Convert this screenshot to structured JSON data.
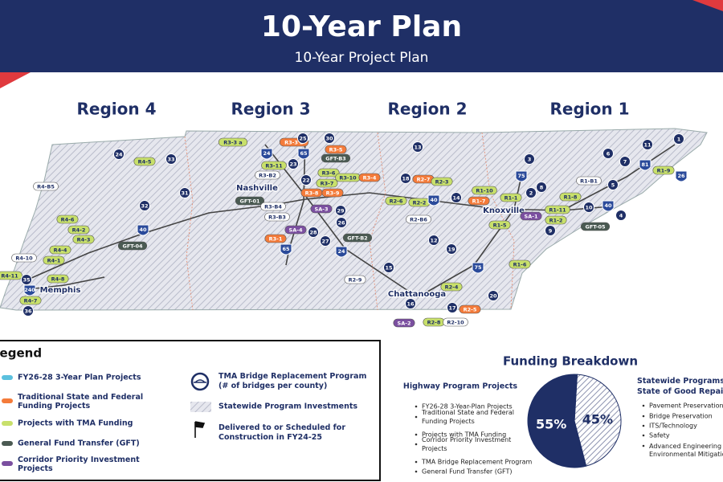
{
  "header": {
    "title": "10-Year Plan",
    "subtitle": "10-Year Project Plan"
  },
  "regions": [
    "Region 4",
    "Region 3",
    "Region 2",
    "Region 1"
  ],
  "cities": [
    "Nashville",
    "Memphis",
    "Knoxville",
    "Chattanooga"
  ],
  "badges": [
    {
      "label": "R4-B5",
      "color": "#ffffff"
    },
    {
      "label": "R4-5",
      "color": "#c8e06b"
    },
    {
      "label": "R4-6",
      "color": "#c8e06b"
    },
    {
      "label": "R4-2",
      "color": "#c8e06b"
    },
    {
      "label": "R4-3",
      "color": "#c8e06b"
    },
    {
      "label": "R4-4",
      "color": "#c8e06b"
    },
    {
      "label": "R4-1",
      "color": "#c8e06b"
    },
    {
      "label": "R4-10",
      "color": "#ffffff"
    },
    {
      "label": "R4-11",
      "color": "#c8e06b"
    },
    {
      "label": "R4-8",
      "color": "#c8e06b"
    },
    {
      "label": "R4-7",
      "color": "#c8e06b"
    },
    {
      "label": "GFT-04",
      "color": "#4a5a52"
    },
    {
      "label": "R3-3 a",
      "color": "#c8e06b"
    },
    {
      "label": "R3-3 b",
      "color": "#f47b3a"
    },
    {
      "label": "R3-5",
      "color": "#f47b3a"
    },
    {
      "label": "GFT-B3",
      "color": "#4a5a52"
    },
    {
      "label": "R3-B2",
      "color": "#ffffff"
    },
    {
      "label": "R3-11",
      "color": "#c8e06b"
    },
    {
      "label": "R3-6",
      "color": "#c8e06b"
    },
    {
      "label": "R3-7",
      "color": "#c8e06b"
    },
    {
      "label": "R3-10",
      "color": "#c8e06b"
    },
    {
      "label": "R3-4",
      "color": "#f47b3a"
    },
    {
      "label": "R3-8",
      "color": "#f47b3a"
    },
    {
      "label": "R3-9",
      "color": "#f47b3a"
    },
    {
      "label": "GFT-01",
      "color": "#4a5a52"
    },
    {
      "label": "R3-B4",
      "color": "#ffffff"
    },
    {
      "label": "R3-B3",
      "color": "#ffffff"
    },
    {
      "label": "SA-3",
      "color": "#7b4fa0"
    },
    {
      "label": "SA-4",
      "color": "#7b4fa0"
    },
    {
      "label": "R3-1",
      "color": "#f47b3a"
    },
    {
      "label": "GFT-B2",
      "color": "#4a5a52"
    },
    {
      "label": "R2-7",
      "color": "#f47b3a"
    },
    {
      "label": "R2-3",
      "color": "#c8e06b"
    },
    {
      "label": "R2-2",
      "color": "#c8e06b"
    },
    {
      "label": "R2-6",
      "color": "#c8e06b"
    },
    {
      "label": "R2-B6",
      "color": "#ffffff"
    },
    {
      "label": "R2-9",
      "color": "#ffffff"
    },
    {
      "label": "R2-4",
      "color": "#c8e06b"
    },
    {
      "label": "R2-5",
      "color": "#f47b3a"
    },
    {
      "label": "R2-8",
      "color": "#c8e06b"
    },
    {
      "label": "R2-10",
      "color": "#ffffff"
    },
    {
      "label": "SA-2",
      "color": "#7b4fa0"
    },
    {
      "label": "R1-10",
      "color": "#c8e06b"
    },
    {
      "label": "R1-7",
      "color": "#f47b3a"
    },
    {
      "label": "R1-1",
      "color": "#c8e06b"
    },
    {
      "label": "R1-B1",
      "color": "#ffffff"
    },
    {
      "label": "R1-8",
      "color": "#c8e06b"
    },
    {
      "label": "R1-11",
      "color": "#c8e06b"
    },
    {
      "label": "R1-2",
      "color": "#c8e06b"
    },
    {
      "label": "R1-5",
      "color": "#c8e06b"
    },
    {
      "label": "SA-1",
      "color": "#7b4fa0"
    },
    {
      "label": "GFT-05",
      "color": "#4a5a52"
    },
    {
      "label": "R1-6",
      "color": "#c8e06b"
    },
    {
      "label": "R1-9",
      "color": "#c8e06b"
    }
  ],
  "bridges": [
    "24",
    "33",
    "31",
    "32",
    "35",
    "36",
    "25",
    "30",
    "22",
    "23",
    "29",
    "26",
    "28",
    "27",
    "13",
    "18",
    "14",
    "12",
    "19",
    "15",
    "16",
    "17",
    "20",
    "3",
    "8",
    "2",
    "6",
    "7",
    "5",
    "4",
    "10",
    "9",
    "1",
    "11"
  ],
  "shields": [
    "240",
    "40",
    "24",
    "65",
    "65",
    "24",
    "40",
    "75",
    "75",
    "40",
    "81",
    "26"
  ],
  "legend": {
    "title": "Legend",
    "items": [
      {
        "label": "FY26-28 3-Year Plan Projects",
        "color": "#5bc0de"
      },
      {
        "label": "Traditional State and Federal Funding Projects",
        "color": "#f47b3a"
      },
      {
        "label": "Projects with TMA Funding",
        "color": "#c8e06b"
      },
      {
        "label": "General Fund Transfer (GFT)",
        "color": "#4a5a52"
      },
      {
        "label": "Corridor Priority Investment Projects",
        "color": "#7b4fa0"
      }
    ],
    "symbols": [
      "TMA Bridge Replacement Program (# of bridges per county)",
      "Statewide Program Investments",
      "Delivered to or Scheduled for Construction in FY24-25"
    ]
  },
  "funding": {
    "title": "Funding Breakdown",
    "highway": {
      "heading": "Highway Program Projects",
      "items": [
        "FY26-28 3-Year-Plan Projects",
        "Traditional State and Federal Funding Projects",
        "Projects with TMA Funding",
        "Corridor Priority Investment Projects",
        "TMA Bridge Replacement Program",
        "General Fund Transfer (GFT)"
      ]
    },
    "statewide": {
      "heading": "Statewide Programs and State of Good Repair",
      "items": [
        "Pavement Preservation",
        "Bridge Preservation",
        "ITS/Technology",
        "Safety",
        "Advanced Engineering and Environmental Mitigation"
      ]
    }
  },
  "chart_data": {
    "type": "pie",
    "categories": [
      "Highway Program Projects",
      "Statewide Programs and State of Good Repair"
    ],
    "values": [
      55,
      45
    ],
    "value_labels": [
      "55%",
      "45%"
    ],
    "colors": [
      "#1f2f66",
      "hatch"
    ]
  }
}
